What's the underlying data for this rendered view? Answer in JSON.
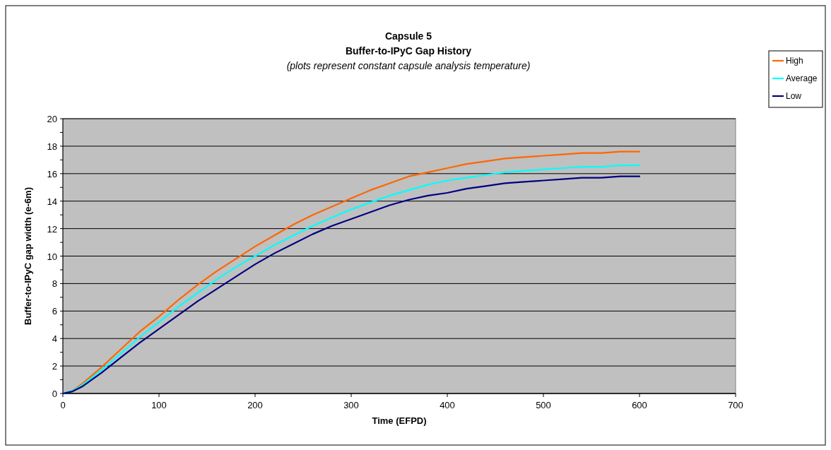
{
  "chart_data": {
    "type": "line",
    "title": "Capsule 5",
    "subtitle": "Buffer-to-IPyC Gap History",
    "annotations": [
      "(plots represent constant capsule analysis temperature)"
    ],
    "xlabel": "Time (EFPD)",
    "ylabel": "Buffer-to-IPyC gap width (e-6m)",
    "x": [
      0,
      10,
      20,
      40,
      60,
      80,
      100,
      120,
      140,
      160,
      180,
      200,
      220,
      240,
      260,
      280,
      300,
      320,
      340,
      360,
      380,
      400,
      420,
      440,
      460,
      480,
      500,
      520,
      540,
      560,
      580,
      600
    ],
    "series": [
      {
        "name": "High",
        "color": "#ff6600",
        "values": [
          0,
          0.2,
          0.7,
          1.9,
          3.2,
          4.5,
          5.6,
          6.8,
          7.9,
          8.9,
          9.8,
          10.7,
          11.5,
          12.3,
          13.0,
          13.6,
          14.2,
          14.8,
          15.3,
          15.8,
          16.1,
          16.4,
          16.7,
          16.9,
          17.1,
          17.2,
          17.3,
          17.4,
          17.5,
          17.5,
          17.6,
          17.6
        ]
      },
      {
        "name": "Average",
        "color": "#00ffff",
        "values": [
          0,
          0.2,
          0.6,
          1.7,
          2.9,
          4.1,
          5.2,
          6.3,
          7.3,
          8.3,
          9.2,
          10.0,
          10.8,
          11.5,
          12.2,
          12.8,
          13.4,
          13.9,
          14.4,
          14.8,
          15.2,
          15.5,
          15.7,
          15.9,
          16.1,
          16.2,
          16.3,
          16.4,
          16.5,
          16.5,
          16.6,
          16.6
        ]
      },
      {
        "name": "Low",
        "color": "#000080",
        "values": [
          0,
          0.15,
          0.5,
          1.5,
          2.6,
          3.7,
          4.7,
          5.7,
          6.7,
          7.6,
          8.5,
          9.4,
          10.2,
          10.9,
          11.6,
          12.2,
          12.7,
          13.2,
          13.7,
          14.1,
          14.4,
          14.6,
          14.9,
          15.1,
          15.3,
          15.4,
          15.5,
          15.6,
          15.7,
          15.7,
          15.8,
          15.8
        ]
      }
    ],
    "xlim": [
      0,
      700
    ],
    "xticks": [
      0,
      100,
      200,
      300,
      400,
      500,
      600,
      700
    ],
    "ylim": [
      0,
      20
    ],
    "yticks": [
      0,
      {
        "value": 1,
        "label": null
      },
      2,
      {
        "value": 3,
        "label": null
      },
      4,
      {
        "value": 5,
        "label": null
      },
      6,
      {
        "value": 7,
        "label": null
      },
      8,
      {
        "value": 9,
        "label": null
      },
      10,
      {
        "value": 11,
        "label": null
      },
      12,
      {
        "value": 13,
        "label": null
      },
      14,
      {
        "value": 15,
        "label": null
      },
      16,
      {
        "value": 17,
        "label": null
      },
      18,
      {
        "value": 19,
        "label": null
      },
      20
    ],
    "grid": "y",
    "legend": "top right",
    "marker": "none",
    "line_style": "solid"
  }
}
